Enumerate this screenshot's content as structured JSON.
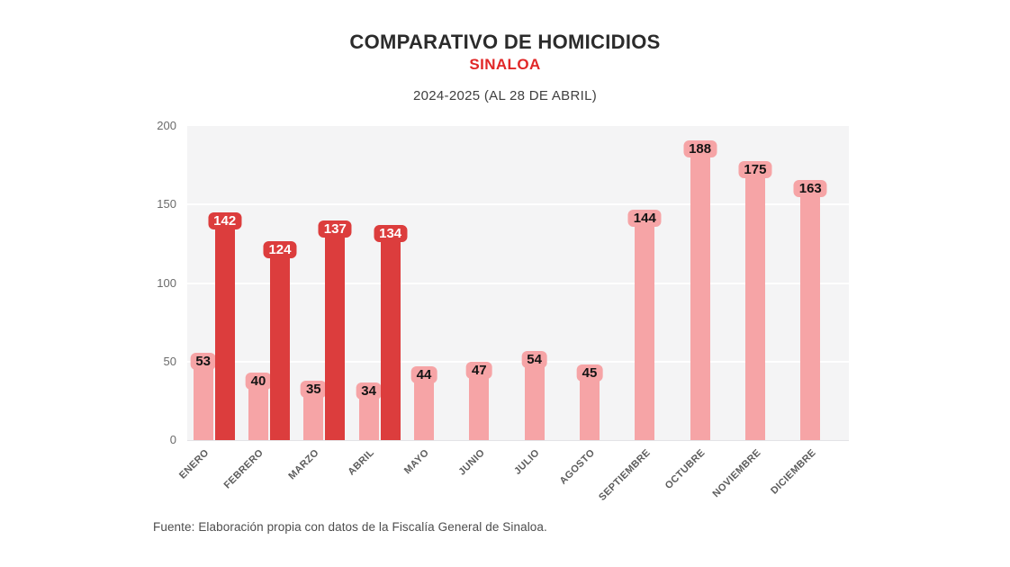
{
  "header": {
    "title": "COMPARATIVO DE HOMICIDIOS",
    "state": "SINALOA",
    "period": "2024-2025 (AL 28 DE ABRIL)"
  },
  "footer": {
    "source": "Fuente: Elaboración propia con datos de la Fiscalía General de Sinaloa."
  },
  "colors": {
    "series_2024": "#f6a4a6",
    "series_2025": "#dc3d3d",
    "accent_red": "#e12727",
    "title_text": "#2b2b2b",
    "axis_text": "#5c5c5c",
    "panel_bg": "#f4f4f5"
  },
  "chart_data": {
    "type": "bar",
    "title": "COMPARATIVO DE HOMICIDIOS",
    "subtitle": "SINALOA",
    "period": "2024-2025 (AL 28 DE ABRIL)",
    "categories": [
      "ENERO",
      "FEBRERO",
      "MARZO",
      "ABRIL",
      "MAYO",
      "JUNIO",
      "JULIO",
      "AGOSTO",
      "SEPTIEMBRE",
      "OCTUBRE",
      "NOVIEMBRE",
      "DICIEMBRE"
    ],
    "series": [
      {
        "name": "2024",
        "color": "#f6a4a6",
        "label_text_color": "#141414",
        "values": [
          53,
          40,
          35,
          34,
          44,
          47,
          54,
          45,
          144,
          188,
          175,
          163
        ]
      },
      {
        "name": "2025",
        "color": "#dc3d3d",
        "label_text_color": "#ffffff",
        "values": [
          142,
          124,
          137,
          134,
          null,
          null,
          null,
          null,
          null,
          null,
          null,
          null
        ]
      }
    ],
    "ylim": [
      0,
      200
    ],
    "yticks": [
      0,
      50,
      100,
      150,
      200
    ],
    "grid": true,
    "legend_position": "none",
    "source": "Fuente: Elaboración propia con datos de la Fiscalía General de Sinaloa."
  }
}
